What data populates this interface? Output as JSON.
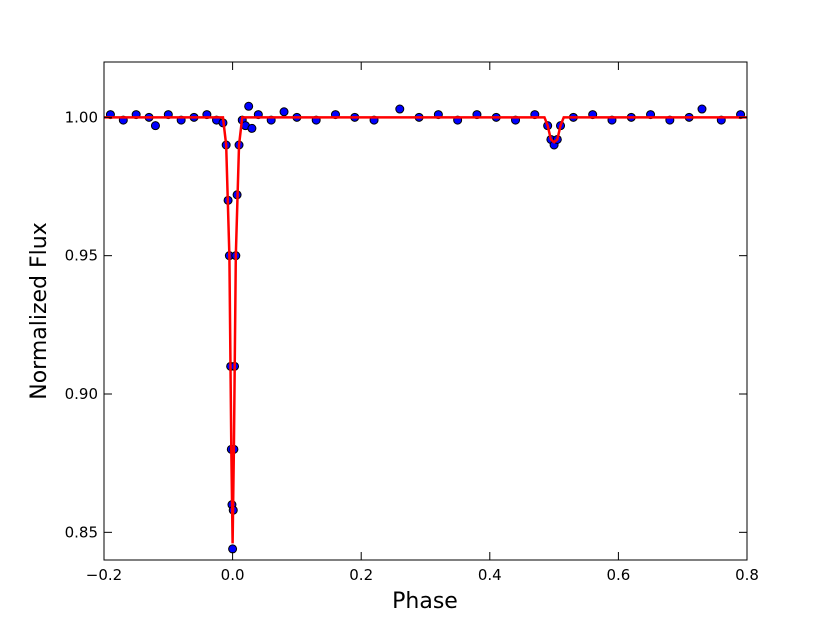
{
  "chart_data": {
    "type": "scatter",
    "xlabel": "Phase",
    "ylabel": "Normalized Flux",
    "xlim": [
      -0.2,
      0.8
    ],
    "ylim": [
      0.84,
      1.02
    ],
    "xticks": [
      {
        "value": -0.2,
        "label": "−0.2"
      },
      {
        "value": 0,
        "label": "0.0"
      },
      0.2,
      0.4,
      0.6,
      0.8
    ],
    "yticks": [
      0.85,
      {
        "value": 0.9,
        "label": "0.90"
      },
      0.95,
      {
        "value": 1,
        "label": "1.00"
      }
    ],
    "series": [
      {
        "type": "scatter",
        "color": "#0000ff",
        "edgecolor": "#000000",
        "x": [
          -0.19,
          -0.17,
          -0.15,
          -0.13,
          -0.12,
          -0.1,
          -0.08,
          -0.06,
          -0.04,
          -0.025,
          -0.015,
          -0.01,
          -0.007,
          -0.005,
          -0.003,
          -0.002,
          -0.001,
          0,
          0.001,
          0.002,
          0.003,
          0.005,
          0.007,
          0.01,
          0.015,
          0.02,
          0.025,
          0.03,
          0.04,
          0.06,
          0.08,
          0.1,
          0.13,
          0.16,
          0.19,
          0.22,
          0.26,
          0.29,
          0.32,
          0.35,
          0.38,
          0.41,
          0.44,
          0.47,
          0.49,
          0.495,
          0.5,
          0.505,
          0.51,
          0.53,
          0.56,
          0.59,
          0.62,
          0.65,
          0.68,
          0.71,
          0.73,
          0.76,
          0.79
        ],
        "values": [
          1.001,
          0.999,
          1.001,
          1.0,
          0.997,
          1.001,
          0.999,
          1.0,
          1.001,
          0.999,
          0.998,
          0.99,
          0.97,
          0.95,
          0.91,
          0.88,
          0.86,
          0.844,
          0.858,
          0.88,
          0.91,
          0.95,
          0.972,
          0.99,
          0.999,
          0.997,
          1.004,
          0.996,
          1.001,
          0.999,
          1.002,
          1.0,
          0.999,
          1.001,
          1.0,
          0.999,
          1.003,
          1.0,
          1.001,
          0.999,
          1.001,
          1.0,
          0.999,
          1.001,
          0.997,
          0.992,
          0.99,
          0.992,
          0.997,
          1.0,
          1.001,
          0.999,
          1.0,
          1.001,
          0.999,
          1.0,
          1.003,
          0.999,
          1.001
        ]
      },
      {
        "type": "line",
        "color": "#ff0000",
        "x": [
          -0.2,
          -0.015,
          -0.01,
          -0.005,
          -0.002,
          0,
          0.002,
          0.005,
          0.01,
          0.015,
          0.485,
          0.49,
          0.495,
          0.5,
          0.505,
          0.51,
          0.515,
          0.8
        ],
        "values": [
          1.0,
          1.0,
          0.99,
          0.95,
          0.88,
          0.846,
          0.88,
          0.95,
          0.99,
          1.0,
          1.0,
          0.997,
          0.992,
          0.991,
          0.992,
          0.997,
          1.0,
          1.0
        ]
      }
    ]
  }
}
